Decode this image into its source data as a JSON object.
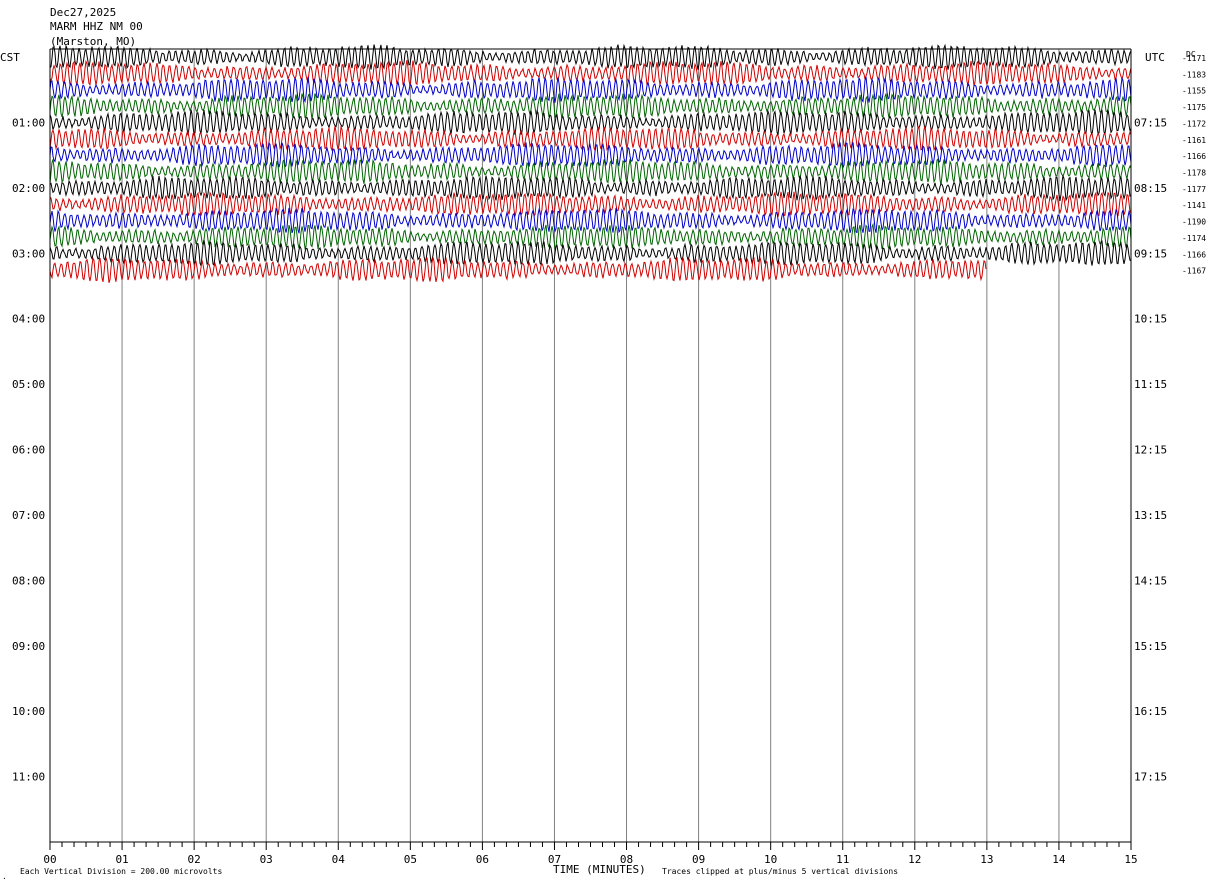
{
  "header": {
    "date": "Dec27,2025",
    "station": "MARM HHZ NM 00",
    "location": "(Marston, MO)"
  },
  "left_timezone": "CST",
  "right_timezone": "UTC",
  "dc_label": "DC",
  "colors": {
    "trace_cycle": [
      "#000000",
      "#d00000",
      "#0000c8",
      "#006400"
    ],
    "grid": "#808080",
    "frame": "#000000"
  },
  "footer": {
    "xlabel": "TIME (MINUTES)",
    "scale_note": "Each Vertical Division =  200.00 microvolts",
    "clip_note": "Traces clipped at plus/minus 5 vertical divisions"
  },
  "chart_data": {
    "type": "line",
    "subtype": "helicorder",
    "xlabel": "TIME (MINUTES)",
    "x_ticks": [
      "00",
      "01",
      "02",
      "03",
      "04",
      "05",
      "06",
      "07",
      "08",
      "09",
      "10",
      "11",
      "12",
      "13",
      "14",
      "15"
    ],
    "xlim": [
      0,
      15
    ],
    "left_hour_labels": [
      "01:00",
      "02:00",
      "03:00",
      "04:00",
      "05:00",
      "06:00",
      "07:00",
      "08:00",
      "09:00",
      "10:00",
      "11:00"
    ],
    "right_hour_labels": [
      "07:15",
      "08:15",
      "09:15",
      "10:15",
      "11:15",
      "12:15",
      "13:15",
      "14:15",
      "15:15",
      "16:15",
      "17:15"
    ],
    "rows_total": 48,
    "row_minutes": 15,
    "trace_rows": [
      {
        "dc": "-1171",
        "color": "#000000",
        "duration_min": 15
      },
      {
        "dc": "-1183",
        "color": "#d00000",
        "duration_min": 15
      },
      {
        "dc": "-1155",
        "color": "#0000c8",
        "duration_min": 15
      },
      {
        "dc": "-1175",
        "color": "#006400",
        "duration_min": 15
      },
      {
        "dc": "-1172",
        "color": "#000000",
        "duration_min": 15
      },
      {
        "dc": "-1161",
        "color": "#d00000",
        "duration_min": 15
      },
      {
        "dc": "-1166",
        "color": "#0000c8",
        "duration_min": 15
      },
      {
        "dc": "-1178",
        "color": "#006400",
        "duration_min": 15
      },
      {
        "dc": "-1177",
        "color": "#000000",
        "duration_min": 15
      },
      {
        "dc": "-1141",
        "color": "#d00000",
        "duration_min": 15
      },
      {
        "dc": "-1190",
        "color": "#0000c8",
        "duration_min": 15
      },
      {
        "dc": "-1174",
        "color": "#006400",
        "duration_min": 15
      },
      {
        "dc": "-1166",
        "color": "#000000",
        "duration_min": 15
      },
      {
        "dc": "-1167",
        "color": "#d00000",
        "duration_min": 13
      }
    ],
    "grid": true
  }
}
